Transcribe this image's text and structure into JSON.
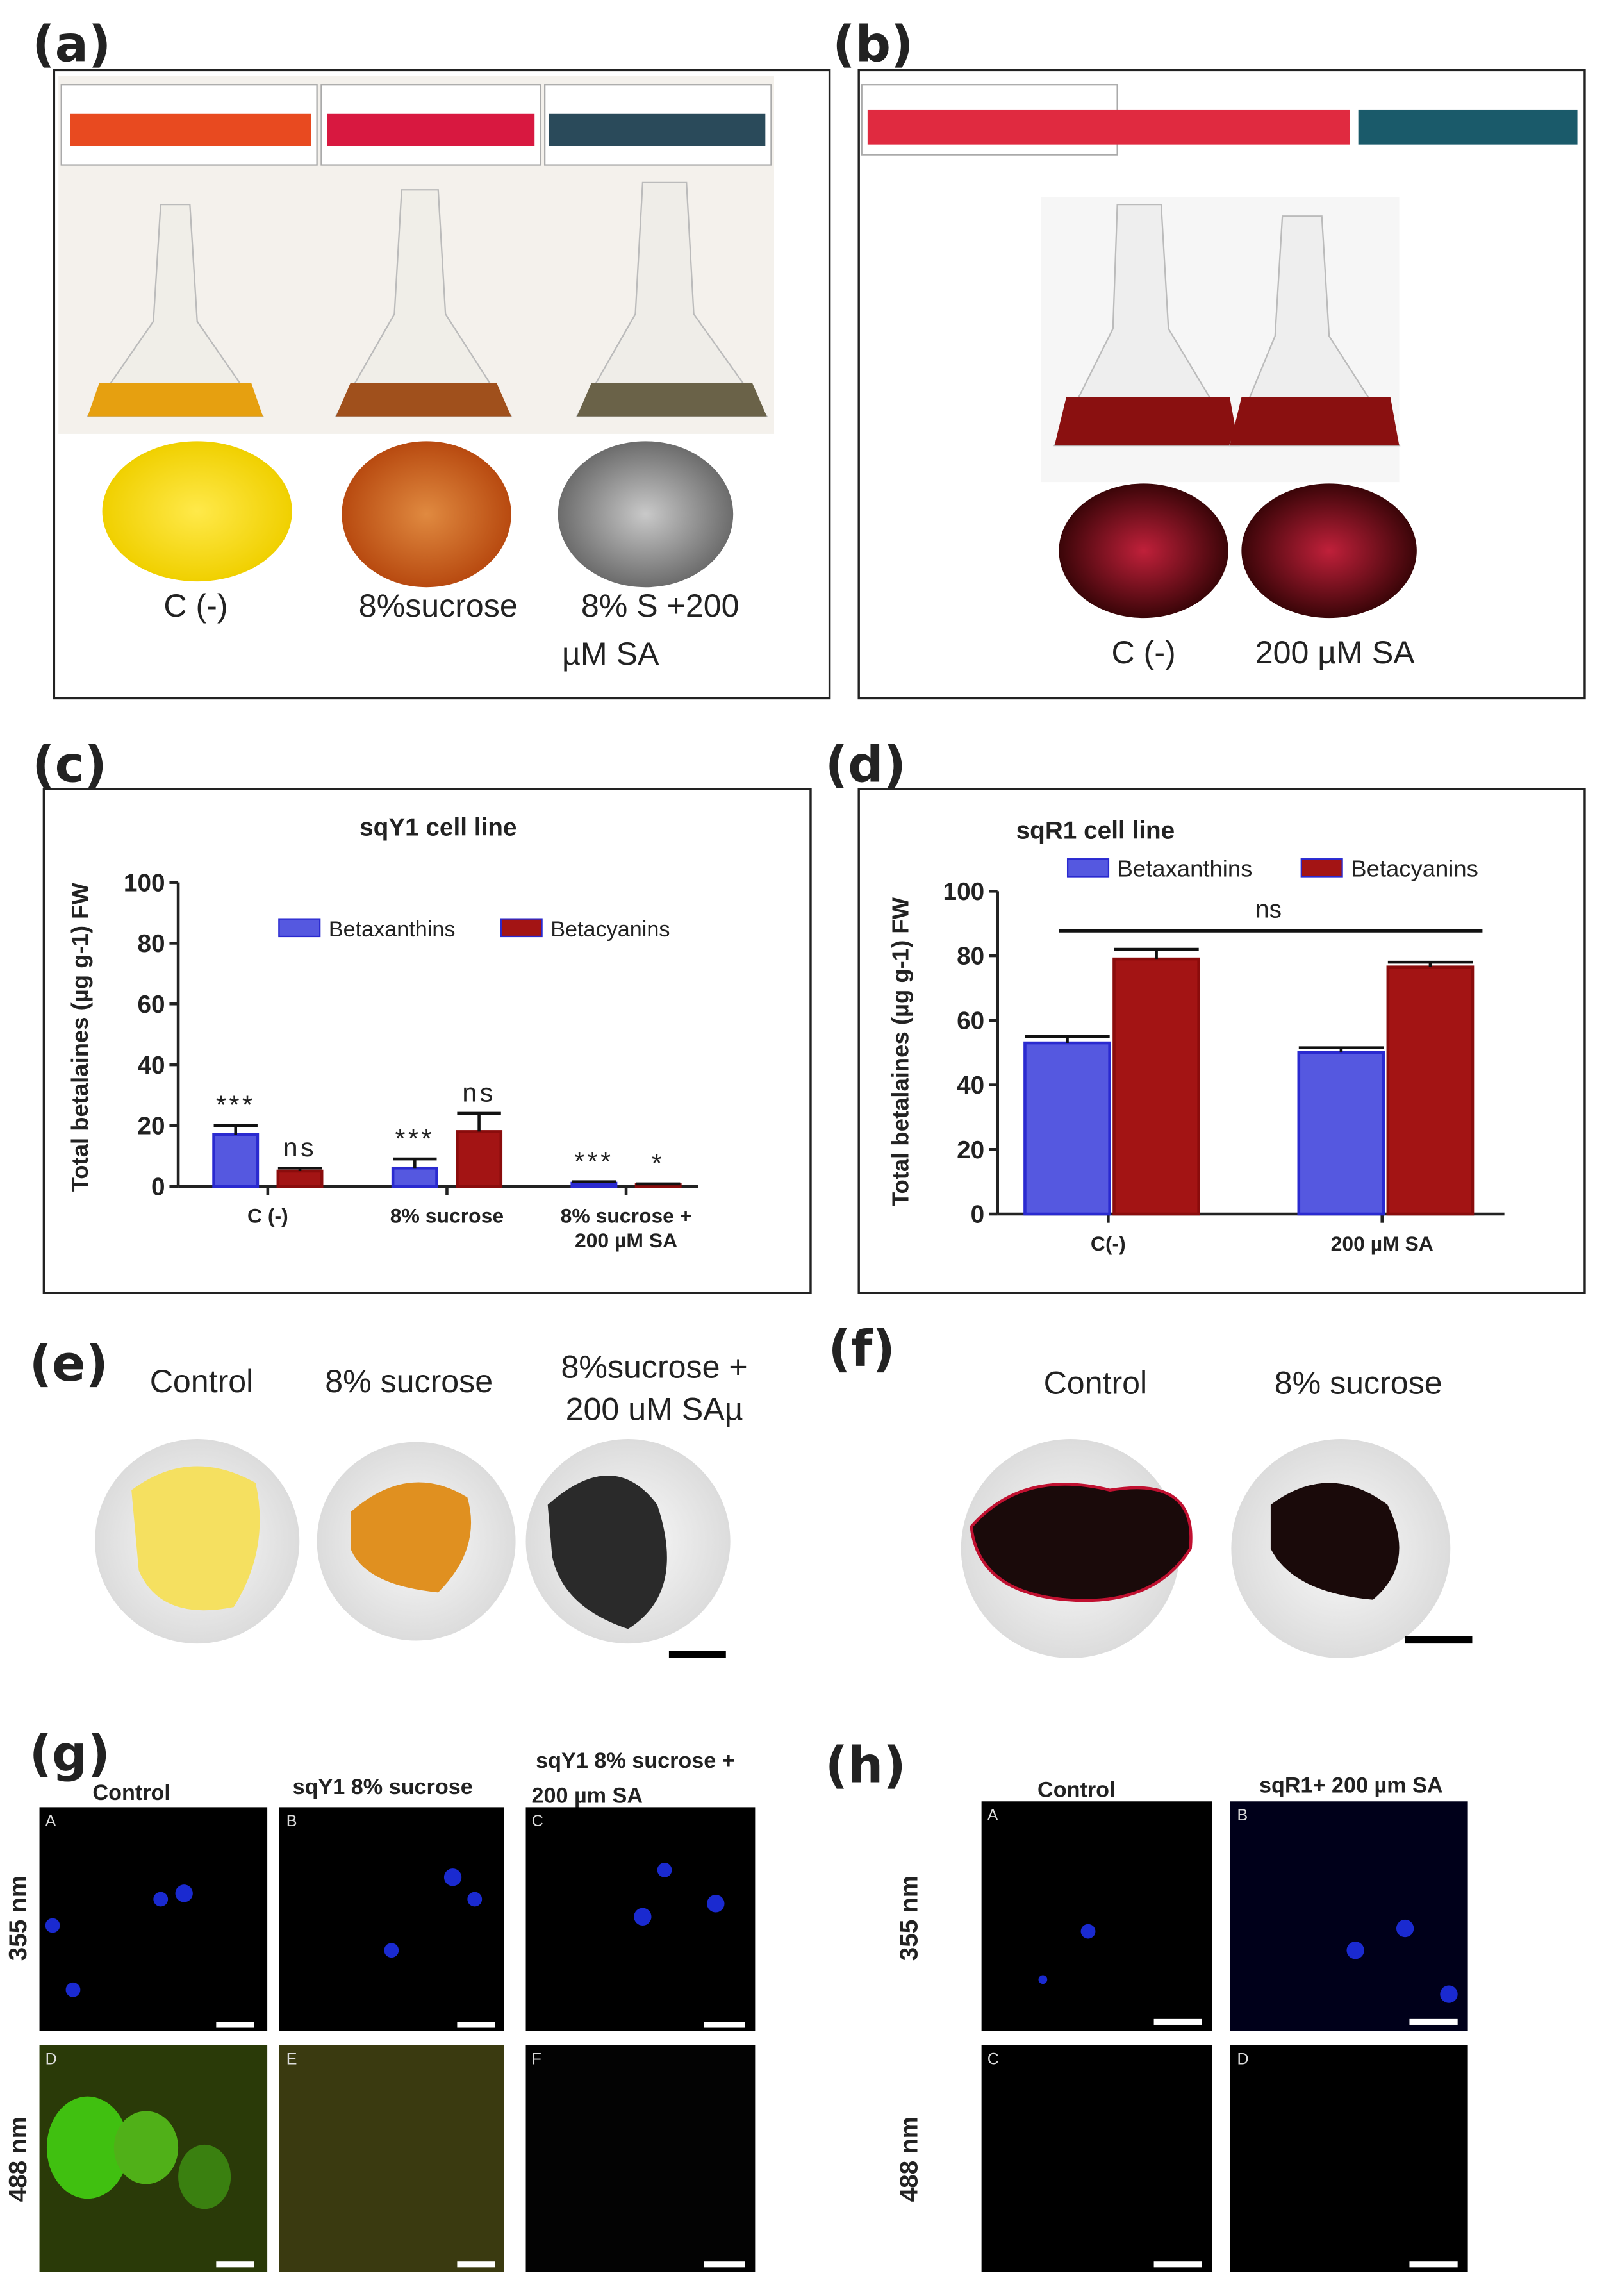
{
  "panels": {
    "a": {
      "label": "(a)",
      "captions": [
        "C (-)",
        "8%sucrose",
        "8% S +200",
        "µM SA"
      ]
    },
    "b": {
      "label": "(b)",
      "captions": [
        "C (-)",
        "200 µM SA"
      ]
    },
    "c": {
      "label": "(c)"
    },
    "d": {
      "label": "(d)"
    },
    "e": {
      "label": "(e)",
      "captions": [
        "Control",
        "8% sucrose",
        "8%sucrose +",
        "200 uM SAµ"
      ]
    },
    "f": {
      "label": "(f)",
      "captions": [
        "Control",
        "8% sucrose"
      ]
    },
    "g": {
      "label": "(g)",
      "columns": [
        "Control",
        "sqY1 8% sucrose",
        "sqY1 8% sucrose +",
        "200 µm SA"
      ],
      "rows": [
        "355 nm",
        "488 nm"
      ],
      "tiles": [
        "A",
        "B",
        "C",
        "D",
        "E",
        "F"
      ]
    },
    "h": {
      "label": "(h)",
      "columns": [
        "Control",
        "sqR1+ 200 µm SA"
      ],
      "rows": [
        "355 nm",
        "488 nm"
      ],
      "tiles": [
        "A",
        "B",
        "C",
        "D"
      ]
    }
  },
  "chart_data": [
    {
      "type": "bar",
      "title": "sqY1 cell line",
      "ylabel": "Total betalaines (µg g-1) FW",
      "categories": [
        "C (-)",
        "8% sucrose",
        "8% sucrose +\n200 µM SA"
      ],
      "series": [
        {
          "name": "Betaxanthins",
          "color": "#5558e0",
          "values": [
            17,
            6,
            1
          ],
          "errors": [
            3,
            3,
            0.5
          ],
          "significance": [
            "***",
            "***",
            "***"
          ]
        },
        {
          "name": "Betacyanins",
          "color": "#a31414",
          "values": [
            5,
            18,
            0.5
          ],
          "errors": [
            1,
            6,
            0.3
          ],
          "significance": [
            "ns",
            "ns",
            "*"
          ]
        }
      ],
      "ylim": [
        0,
        100
      ],
      "yticks": [
        0,
        20,
        40,
        60,
        80,
        100
      ],
      "grid": false
    },
    {
      "type": "bar",
      "title": "sqR1 cell line",
      "ylabel": "Total betalaines (µg g-1) FW",
      "categories": [
        "C(-)",
        "200 µM SA"
      ],
      "series": [
        {
          "name": "Betaxanthins",
          "color": "#5558e0",
          "values": [
            53,
            50
          ],
          "errors": [
            2,
            1.5
          ]
        },
        {
          "name": "Betacyanins",
          "color": "#a31414",
          "values": [
            79,
            76.5
          ],
          "errors": [
            3,
            1.5
          ]
        }
      ],
      "annotation": "ns",
      "ylim": [
        0,
        100
      ],
      "yticks": [
        0,
        20,
        40,
        60,
        80,
        100
      ],
      "grid": false
    }
  ]
}
